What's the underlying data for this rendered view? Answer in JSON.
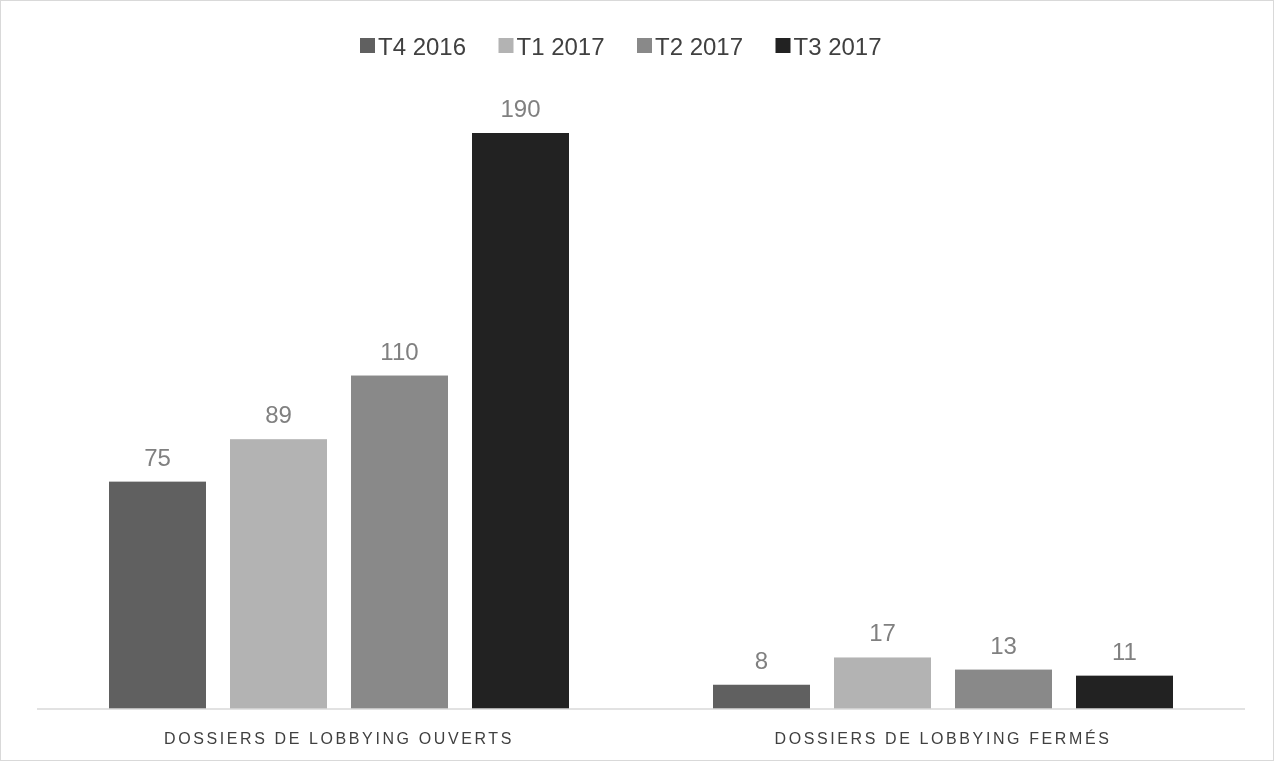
{
  "chart_data": {
    "type": "bar",
    "categories": [
      "DOSSIERS DE LOBBYING OUVERTS",
      "DOSSIERS DE LOBBYING FERMÉS"
    ],
    "series": [
      {
        "name": "T4 2016",
        "color": "#606060",
        "values": [
          75,
          8
        ]
      },
      {
        "name": "T1 2017",
        "color": "#b3b3b3",
        "values": [
          89,
          17
        ]
      },
      {
        "name": "T2 2017",
        "color": "#898989",
        "values": [
          110,
          13
        ]
      },
      {
        "name": "T3 2017",
        "color": "#222222",
        "values": [
          190,
          11
        ]
      }
    ],
    "data_labels": true,
    "legend": "top"
  }
}
